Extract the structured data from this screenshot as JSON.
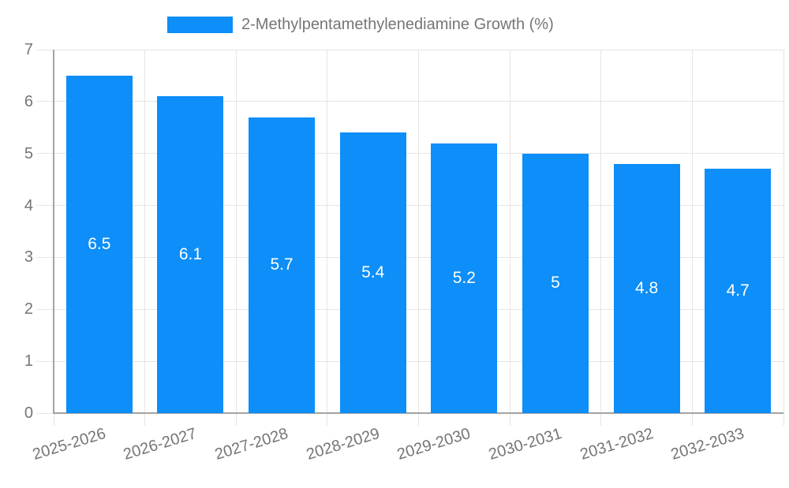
{
  "legend": {
    "label": "2-Methylpentamethylenediamine Growth (%)"
  },
  "chart_data": {
    "type": "bar",
    "title": "",
    "xlabel": "",
    "ylabel": "",
    "categories": [
      "2025-2026",
      "2026-2027",
      "2027-2028",
      "2028-2029",
      "2029-2030",
      "2030-2031",
      "2031-2032",
      "2032-2033"
    ],
    "values": [
      6.5,
      6.1,
      5.7,
      5.4,
      5.2,
      5,
      4.8,
      4.7
    ],
    "value_labels": [
      "6.5",
      "6.1",
      "5.7",
      "5.4",
      "5.2",
      "5",
      "4.8",
      "4.7"
    ],
    "ylim": [
      0,
      7
    ],
    "yticks": [
      "0",
      "1",
      "2",
      "3",
      "4",
      "5",
      "6",
      "7"
    ],
    "grid": true,
    "legend_position": "top",
    "legend_label": "2-Methylpentamethylenediamine Growth (%)",
    "colors": {
      "bar": "#0d8ef8",
      "axis": "#a3a3a3",
      "grid": "#e5e5e5",
      "tick_text": "#757575",
      "value_text": "#ffffff"
    }
  }
}
